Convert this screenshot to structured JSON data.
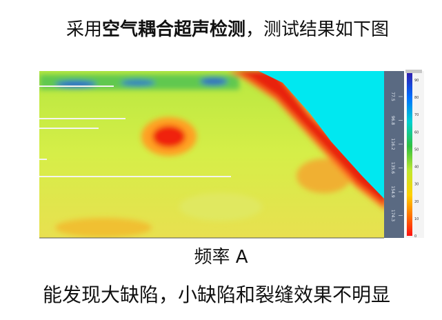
{
  "heading": {
    "prefix": "采用",
    "emphasis": "空气耦合超声检测",
    "suffix": "，测试结果如下图"
  },
  "figure": {
    "ruler_labels": [
      "77.5",
      "96.8",
      "116.2",
      "135.6",
      "154.9",
      "174.3"
    ],
    "scale_labels": [
      "90",
      "80",
      "70",
      "60",
      "50",
      "40",
      "30",
      "20",
      "10",
      "0"
    ]
  },
  "caption": "频率 A",
  "conclusion": "能发现大缺陷，小缺陷和裂缝效果不明显"
}
